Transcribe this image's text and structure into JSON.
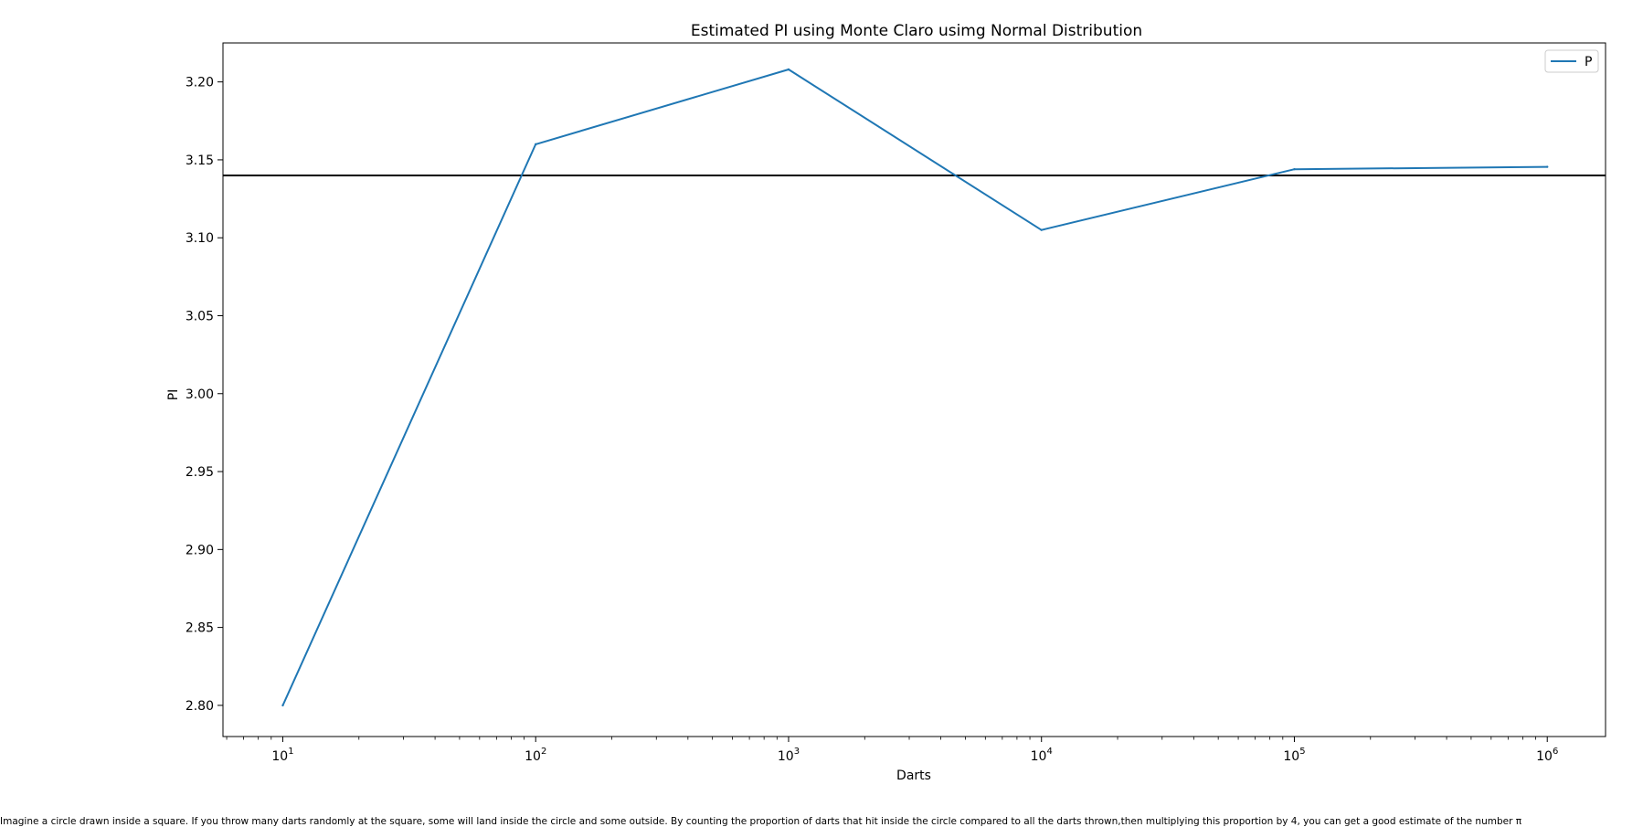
{
  "chart_data": {
    "type": "line",
    "title": "Estimated PI using  Monte Claro usimg Normal Distribution",
    "xlabel": "Darts",
    "ylabel": "PI",
    "xscale": "log",
    "xlim": [
      5.8,
      1700000
    ],
    "ylim": [
      2.78,
      3.225
    ],
    "x": [
      10,
      100,
      1000,
      10000,
      100000,
      1000000
    ],
    "x_tick_labels": [
      {
        "base": "10",
        "exp": "1"
      },
      {
        "base": "10",
        "exp": "2"
      },
      {
        "base": "10",
        "exp": "3"
      },
      {
        "base": "10",
        "exp": "4"
      },
      {
        "base": "10",
        "exp": "5"
      },
      {
        "base": "10",
        "exp": "6"
      }
    ],
    "y_ticks": [
      "2.80",
      "2.85",
      "2.90",
      "2.95",
      "3.00",
      "3.05",
      "3.10",
      "3.15",
      "3.20"
    ],
    "series": [
      {
        "name": "P",
        "color": "#1f77b4",
        "values": [
          2.8,
          3.16,
          3.208,
          3.105,
          3.144,
          3.1455
        ]
      }
    ],
    "reference_line": {
      "y": 3.14,
      "color": "#000000"
    },
    "legend": {
      "position": "top-right"
    },
    "grid": false
  },
  "caption": "Imagine a circle drawn inside a square. If you throw many darts randomly at the square, some will land inside the circle and some outside. By counting the proportion of darts that hit inside the circle compared to all the darts thrown,then multiplying this proportion by 4, you can get a good estimate of the number π"
}
